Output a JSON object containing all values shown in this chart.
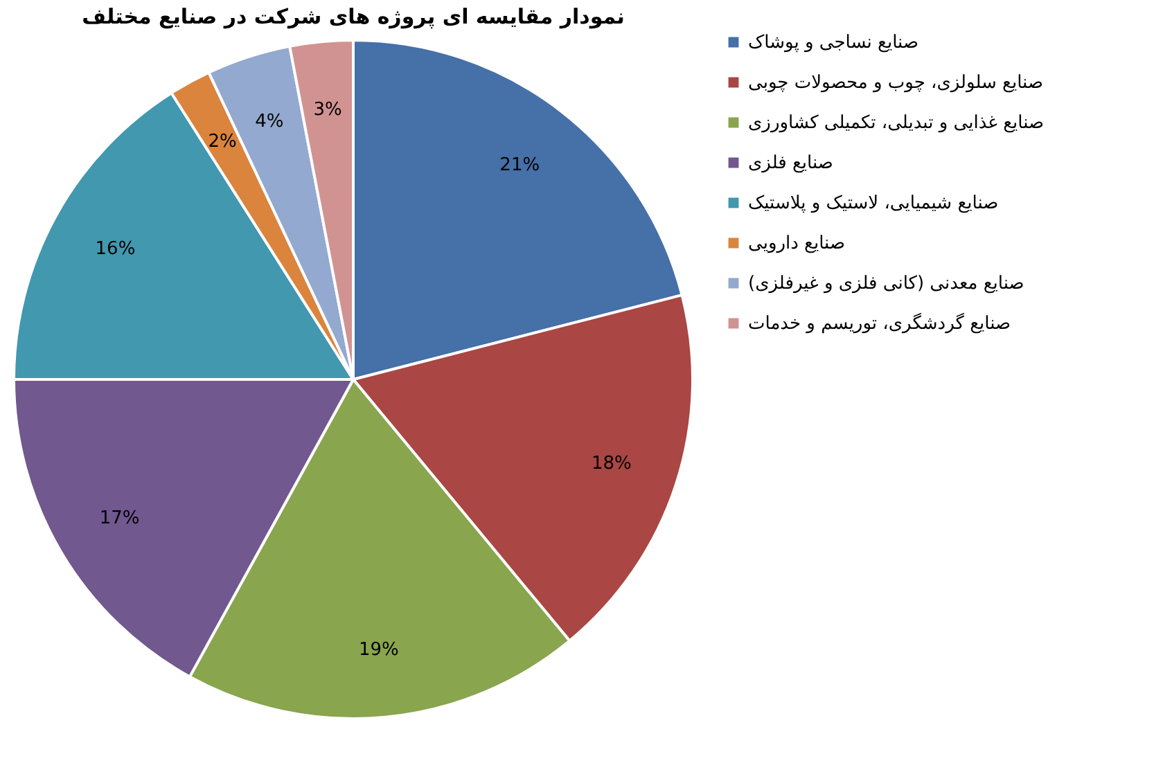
{
  "chart_data": {
    "type": "pie",
    "title": "نمودار مقایسه ای پروژه های شرکت در صنایع مختلف",
    "categories": [
      "صنایع نساجی و پوشاک",
      "صنایع سلولزی، چوب و محصولات چوبی",
      "صنایع غذایی و تبدیلی، تکمیلی کشاورزی",
      "صنایع فلزی",
      "صنایع شیمیایی، لاستیک و پلاستیک",
      "صنایع دارویی",
      "صنایع معدنی (کانی فلزی و غیرفلزی)",
      "صنایع گردشگری، توریسم و خدمات"
    ],
    "values": [
      21,
      18,
      19,
      17,
      16,
      2,
      4,
      3
    ],
    "value_labels": [
      "21%",
      "18%",
      "19%",
      "17%",
      "16%",
      "2%",
      "4%",
      "3%"
    ],
    "colors": [
      "#4570a8",
      "#aa4643",
      "#89a54e",
      "#71588f",
      "#4198af",
      "#db843d",
      "#93a9cf",
      "#d19392"
    ],
    "legend": "right"
  }
}
